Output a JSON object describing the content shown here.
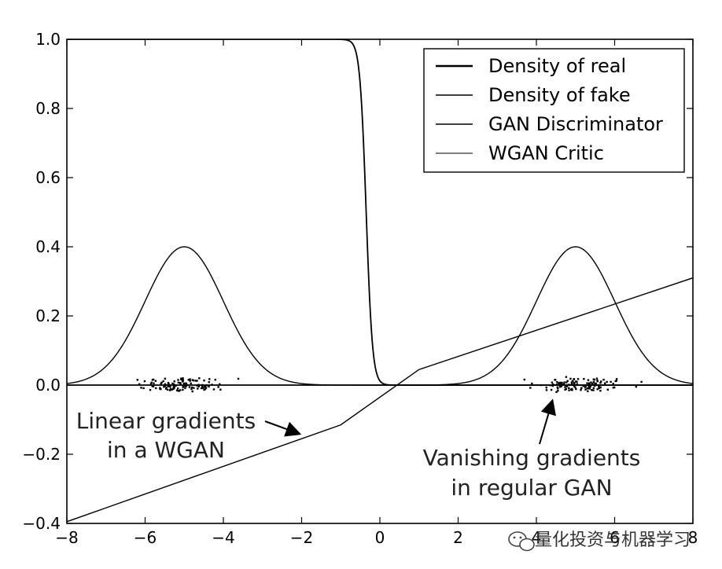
{
  "chart_data": {
    "type": "line",
    "title": "",
    "xlabel": "",
    "ylabel": "",
    "xlim": [
      -8,
      8
    ],
    "ylim": [
      -0.4,
      1.0
    ],
    "xticks": [
      -8,
      -6,
      -4,
      -2,
      0,
      2,
      4,
      6,
      8
    ],
    "xtick_labels": [
      "−8",
      "−6",
      "−4",
      "−2",
      "0",
      "2",
      "4",
      "6",
      "8"
    ],
    "yticks": [
      -0.4,
      -0.2,
      0.0,
      0.2,
      0.4,
      0.6,
      0.8,
      1.0
    ],
    "ytick_labels": [
      "−0.4",
      "−0.2",
      "0.0",
      "0.2",
      "0.4",
      "0.6",
      "0.8",
      "1.0"
    ],
    "series": [
      {
        "name": "Density of real",
        "kind": "gaussian",
        "mean": 5,
        "std": 1,
        "peak": 0.4
      },
      {
        "name": "Density of fake",
        "kind": "gaussian",
        "mean": -5,
        "std": 1,
        "peak": 0.4
      },
      {
        "name": "GAN Discriminator",
        "kind": "sigmoid",
        "center": -0.35,
        "scale": 0.08
      },
      {
        "name": "WGAN Critic",
        "kind": "polyline",
        "x": [
          -8,
          -1,
          1,
          8
        ],
        "y": [
          -0.395,
          -0.115,
          0.045,
          0.31
        ]
      }
    ],
    "samples": [
      {
        "name": "fake samples",
        "center": -5,
        "spread": 1
      },
      {
        "name": "real samples",
        "center": 5,
        "spread": 1
      }
    ],
    "legend": {
      "position": "top-right",
      "entries": [
        "Density of real",
        "Density of fake",
        "GAN Discriminator",
        "WGAN Critic"
      ]
    },
    "annotations": [
      {
        "lines": [
          "Linear gradients",
          "in a WGAN"
        ],
        "arrow_to_x": -2.0,
        "arrow_to_y": -0.14
      },
      {
        "lines": [
          "Vanishing gradients",
          "in regular GAN"
        ],
        "arrow_to_x": 4.4,
        "arrow_to_y": -0.03
      }
    ]
  },
  "watermark": "量化投资与机器学习"
}
